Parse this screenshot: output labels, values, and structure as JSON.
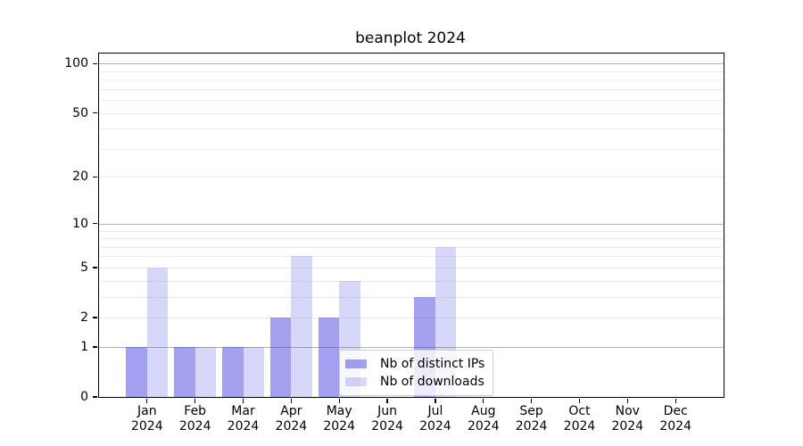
{
  "title": "beanplot 2024",
  "colors": {
    "bar_ips": "rgba(67,67,221,0.5)",
    "bar_downloads": "rgba(67,67,221,0.21)",
    "grid_major": "#b0b0b0",
    "grid_minor": "#ebebeb",
    "spine": "#000000"
  },
  "legend": {
    "position": "lower center"
  },
  "chart_data": {
    "type": "bar",
    "title": "beanplot 2024",
    "xlabel": "",
    "ylabel": "",
    "y_scale": "log1p",
    "categories": [
      "Jan",
      "Feb",
      "Mar",
      "Apr",
      "May",
      "Jun",
      "Jul",
      "Aug",
      "Sep",
      "Oct",
      "Nov",
      "Dec"
    ],
    "category_year": "2024",
    "series": [
      {
        "name": "Nb of distinct IPs",
        "color_key": "bar_ips",
        "values": [
          1,
          1,
          1,
          2,
          2,
          0,
          3,
          0,
          0,
          0,
          0,
          0
        ]
      },
      {
        "name": "Nb of downloads",
        "color_key": "bar_downloads",
        "values": [
          5,
          1,
          1,
          6,
          4,
          0,
          7,
          0,
          0,
          0,
          0,
          0
        ]
      }
    ],
    "y_ticks": [
      0,
      1,
      2,
      5,
      10,
      20,
      50,
      100
    ],
    "y_grid_major": [
      1,
      10,
      100
    ],
    "y_grid_minor": [
      2,
      3,
      4,
      5,
      6,
      7,
      8,
      9,
      20,
      30,
      40,
      50,
      60,
      70,
      80,
      90
    ],
    "ylim": [
      0,
      115
    ],
    "grid": true,
    "legend_position": "lower center"
  }
}
